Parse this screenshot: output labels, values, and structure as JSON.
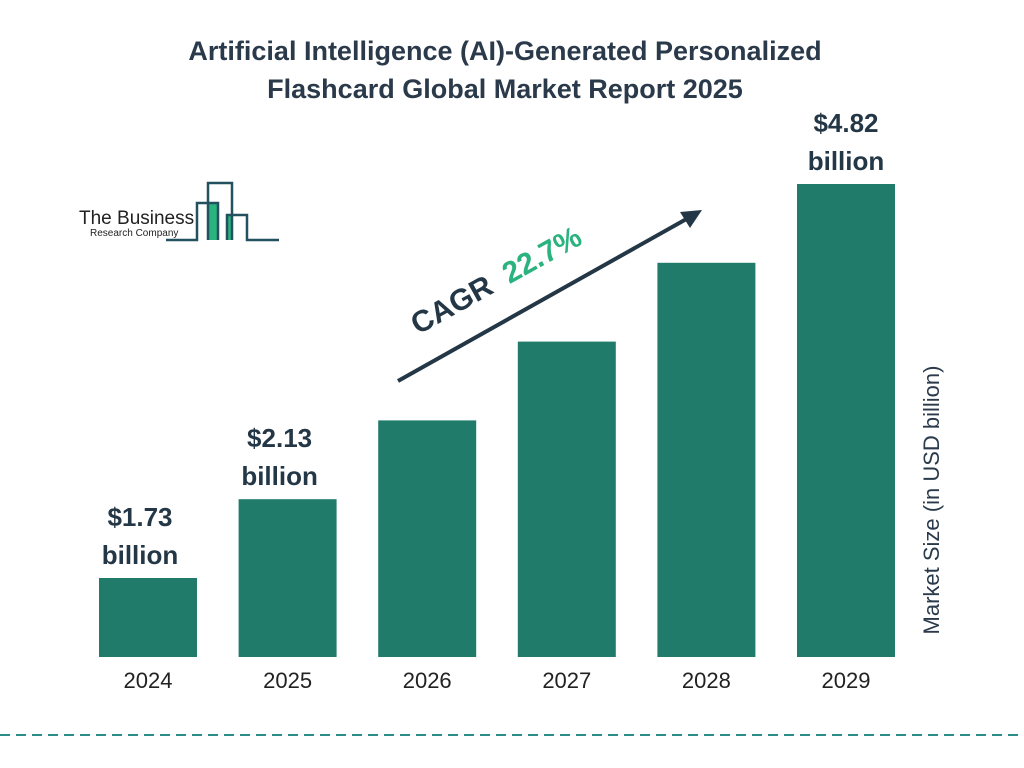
{
  "title_line1": "Artificial Intelligence (AI)-Generated Personalized",
  "title_line2": "Flashcard Global Market Report 2025",
  "logo": {
    "line1": "The Business",
    "line2": "Research Company"
  },
  "colors": {
    "bar": "#217b6b",
    "accent": "#2bb37f",
    "text": "#243746",
    "dash": "#2a8d8a"
  },
  "chart_data": {
    "type": "bar",
    "categories": [
      "2024",
      "2025",
      "2026",
      "2027",
      "2028",
      "2029"
    ],
    "values": [
      1.73,
      2.13,
      2.61,
      3.21,
      3.93,
      4.82
    ],
    "data_labels": [
      {
        "index": 0,
        "value": "$1.73",
        "unit": "billion"
      },
      {
        "index": 1,
        "value": "$2.13",
        "unit": "billion"
      },
      {
        "index": 5,
        "value": "$4.82",
        "unit": "billion"
      }
    ],
    "ylabel": "Market Size (in USD billion)",
    "annotation": {
      "prefix": "CAGR",
      "value": "22.7%"
    },
    "grid": false,
    "legend": "none"
  }
}
